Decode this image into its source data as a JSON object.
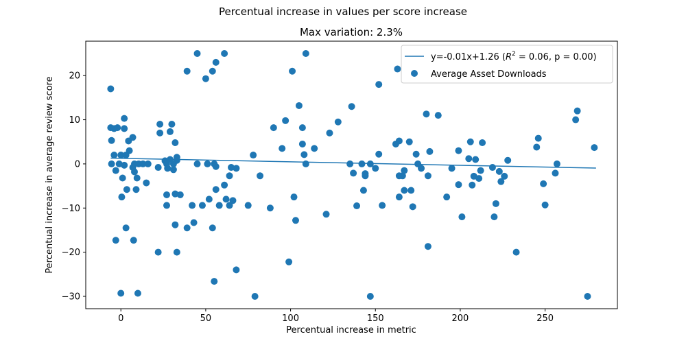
{
  "chart_data": {
    "type": "scatter",
    "suptitle": "Percentual increase in values per score increase",
    "title": "Max variation: 2.3%",
    "xlabel": "Percentual increase in metric",
    "ylabel": "Percentual increase in average review score",
    "xlim": [
      -20.7,
      292.6
    ],
    "ylim": [
      -32.8,
      27.8
    ],
    "xticks": [
      0,
      50,
      100,
      150,
      200,
      250
    ],
    "yticks": [
      -30,
      -20,
      -10,
      0,
      10,
      20
    ],
    "colors": {
      "series": "#1f77b4",
      "axes": "#000000",
      "legend_border": "#cccccc"
    },
    "legend": {
      "placement": "top-right",
      "fit_label_text": "y=-0.01x+1.26 (",
      "fit_label_R": "R",
      "fit_label_exp": "2",
      "fit_label_tail": " = 0.06, p = 0.00)",
      "scatter_label": "Average Asset Downloads"
    },
    "fit_line": {
      "slope": -0.0079,
      "intercept": 1.26,
      "x_range": [
        -6,
        280
      ]
    },
    "series": [
      {
        "name": "Average Asset Downloads",
        "points": [
          [
            -6,
            17
          ],
          [
            -6,
            8.2
          ],
          [
            -5.5,
            5.3
          ],
          [
            -5.5,
            0
          ],
          [
            -4,
            2
          ],
          [
            -4,
            8
          ],
          [
            -3,
            -17.3
          ],
          [
            -3,
            -1.5
          ],
          [
            -2,
            8.2
          ],
          [
            -1,
            0
          ],
          [
            0,
            -29.3
          ],
          [
            0,
            2
          ],
          [
            0.5,
            -7.5
          ],
          [
            1,
            -3.2
          ],
          [
            2,
            10.3
          ],
          [
            2,
            8
          ],
          [
            2,
            -0.3
          ],
          [
            3,
            -14.5
          ],
          [
            3,
            2
          ],
          [
            3.5,
            -5.8
          ],
          [
            4.5,
            5.2
          ],
          [
            5,
            3
          ],
          [
            7,
            6
          ],
          [
            7,
            -0.8
          ],
          [
            7.5,
            -17.3
          ],
          [
            8,
            -1.8
          ],
          [
            8,
            0
          ],
          [
            9,
            -5.8
          ],
          [
            9.5,
            -3.2
          ],
          [
            10,
            -29.3
          ],
          [
            10.5,
            0
          ],
          [
            13,
            0
          ],
          [
            15,
            -4.3
          ],
          [
            16,
            0
          ],
          [
            22,
            -20
          ],
          [
            22,
            -0.8
          ],
          [
            23,
            9
          ],
          [
            23,
            7
          ],
          [
            26,
            0.7
          ],
          [
            27,
            -7
          ],
          [
            27,
            -9.4
          ],
          [
            27,
            0
          ],
          [
            27.5,
            -1
          ],
          [
            29,
            7.3
          ],
          [
            29,
            1
          ],
          [
            30,
            9
          ],
          [
            31,
            -1.3
          ],
          [
            31,
            0
          ],
          [
            32,
            -6.8
          ],
          [
            32,
            -13.8
          ],
          [
            32,
            4.8
          ],
          [
            33,
            0.8
          ],
          [
            33,
            1.5
          ],
          [
            33,
            -20
          ],
          [
            35,
            -7
          ],
          [
            39,
            21
          ],
          [
            39,
            -14.5
          ],
          [
            42,
            -9.4
          ],
          [
            43,
            -13.3
          ],
          [
            45,
            25
          ],
          [
            45,
            0
          ],
          [
            48,
            -9.4
          ],
          [
            50,
            19.3
          ],
          [
            51,
            0
          ],
          [
            52,
            -8
          ],
          [
            54,
            21
          ],
          [
            54,
            -14.5
          ],
          [
            55,
            -26.6
          ],
          [
            55,
            0
          ],
          [
            56,
            23
          ],
          [
            56,
            -0.6
          ],
          [
            56,
            -5.8
          ],
          [
            58,
            -9.4
          ],
          [
            61,
            25
          ],
          [
            61,
            -4.8
          ],
          [
            62,
            -8
          ],
          [
            64,
            -2.7
          ],
          [
            64,
            -9.4
          ],
          [
            65,
            -0.8
          ],
          [
            66,
            -8.3
          ],
          [
            68,
            -1
          ],
          [
            68,
            -24
          ],
          [
            75,
            -9.4
          ],
          [
            78,
            2
          ],
          [
            79,
            -30
          ],
          [
            82,
            -2.7
          ],
          [
            88,
            -10
          ],
          [
            90,
            8.2
          ],
          [
            95,
            3.5
          ],
          [
            97,
            9.8
          ],
          [
            99,
            -22.2
          ],
          [
            101,
            21
          ],
          [
            102,
            -7.5
          ],
          [
            103,
            -12.8
          ],
          [
            105,
            13.2
          ],
          [
            107,
            8.2
          ],
          [
            107,
            4.5
          ],
          [
            108,
            2.1
          ],
          [
            109,
            25
          ],
          [
            109,
            0
          ],
          [
            114,
            3.5
          ],
          [
            121,
            -11.4
          ],
          [
            123,
            7
          ],
          [
            128,
            9.5
          ],
          [
            135,
            0
          ],
          [
            136,
            13
          ],
          [
            137,
            -2.1
          ],
          [
            139,
            -9.5
          ],
          [
            142,
            0
          ],
          [
            143,
            -6
          ],
          [
            144,
            -2.7
          ],
          [
            144,
            -2.2
          ],
          [
            147,
            -30
          ],
          [
            147,
            0
          ],
          [
            150,
            -1
          ],
          [
            152,
            18
          ],
          [
            152,
            2.2
          ],
          [
            154,
            -9.4
          ],
          [
            162,
            4.5
          ],
          [
            163,
            21.5
          ],
          [
            164,
            5.2
          ],
          [
            164,
            -2.7
          ],
          [
            164,
            -7.5
          ],
          [
            166,
            -2.7
          ],
          [
            167,
            -1.5
          ],
          [
            167,
            -6
          ],
          [
            170,
            5
          ],
          [
            171,
            -6
          ],
          [
            172,
            -9.7
          ],
          [
            174,
            2.2
          ],
          [
            175,
            0
          ],
          [
            177,
            -1
          ],
          [
            180,
            11.3
          ],
          [
            181,
            -2.7
          ],
          [
            181,
            -18.7
          ],
          [
            182,
            2.8
          ],
          [
            187,
            11
          ],
          [
            192,
            -7.5
          ],
          [
            195,
            -1
          ],
          [
            199,
            -4.7
          ],
          [
            199,
            3
          ],
          [
            201,
            -12
          ],
          [
            205,
            1.2
          ],
          [
            206,
            5
          ],
          [
            207,
            -4.8
          ],
          [
            208,
            -2.8
          ],
          [
            209,
            1
          ],
          [
            211,
            -3.3
          ],
          [
            212,
            -1.5
          ],
          [
            213,
            4.8
          ],
          [
            219,
            -0.8
          ],
          [
            220,
            -12
          ],
          [
            221,
            -9
          ],
          [
            223,
            -1.7
          ],
          [
            224,
            -4
          ],
          [
            226,
            -2.8
          ],
          [
            228,
            0.8
          ],
          [
            233,
            -20
          ],
          [
            245,
            3.8
          ],
          [
            246,
            5.8
          ],
          [
            249,
            -4.5
          ],
          [
            250,
            -9.3
          ],
          [
            256,
            -2.1
          ],
          [
            257,
            0
          ],
          [
            268,
            10
          ],
          [
            269,
            12
          ],
          [
            275,
            -30
          ],
          [
            279,
            3.7
          ]
        ]
      }
    ]
  }
}
